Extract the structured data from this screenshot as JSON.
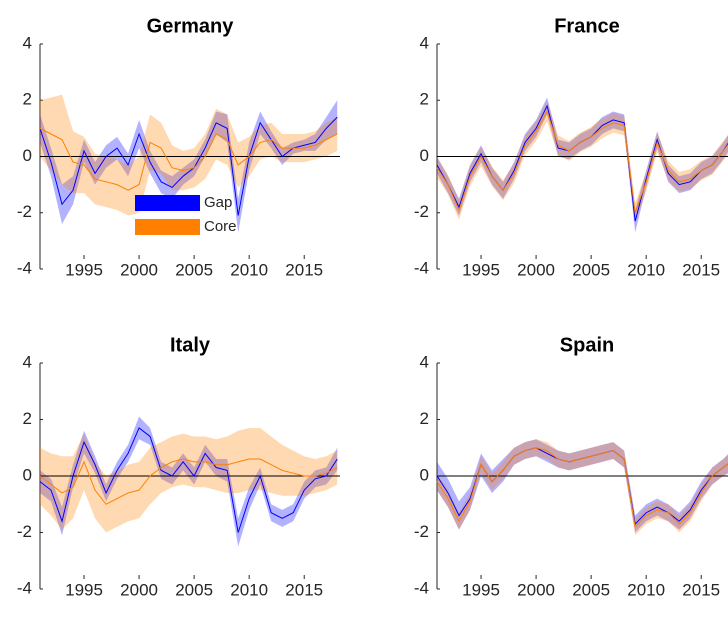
{
  "chart_data": [
    {
      "type": "line",
      "title": "Germany",
      "x": [
        1991,
        1992,
        1993,
        1994,
        1995,
        1996,
        1997,
        1998,
        1999,
        2000,
        2001,
        2002,
        2003,
        2004,
        2005,
        2006,
        2007,
        2008,
        2009,
        2010,
        2011,
        2012,
        2013,
        2014,
        2015,
        2016,
        2017,
        2018
      ],
      "xlim": [
        1991,
        2018.25
      ],
      "xticks": [
        1995,
        2000,
        2005,
        2010,
        2015
      ],
      "ylim": [
        -4,
        4
      ],
      "yticks": [
        -4,
        -2,
        0,
        2,
        4
      ],
      "legend": "lower-center",
      "series": [
        {
          "name": "Gap",
          "color": "#0000ff",
          "values": [
            1.0,
            -0.2,
            -1.7,
            -1.2,
            0.2,
            -0.6,
            0.0,
            0.3,
            -0.3,
            0.8,
            -0.2,
            -0.9,
            -1.1,
            -0.7,
            -0.4,
            0.3,
            1.2,
            1.0,
            -2.1,
            0.0,
            1.2,
            0.6,
            0.0,
            0.3,
            0.4,
            0.5,
            1.0,
            1.4
          ],
          "errors": [
            0.5,
            0.5,
            0.7,
            0.5,
            0.4,
            0.4,
            0.4,
            0.4,
            0.4,
            0.5,
            0.4,
            0.4,
            0.4,
            0.3,
            0.3,
            0.3,
            0.4,
            0.5,
            0.6,
            0.5,
            0.4,
            0.3,
            0.3,
            0.2,
            0.2,
            0.3,
            0.4,
            0.6
          ]
        },
        {
          "name": "Core",
          "color": "#ff8000",
          "values": [
            1.0,
            0.8,
            0.6,
            -0.2,
            -0.3,
            -0.8,
            -0.9,
            -1.0,
            -1.2,
            -1.0,
            0.5,
            0.3,
            -0.4,
            -0.5,
            -0.4,
            0.0,
            0.8,
            0.6,
            -0.3,
            0.0,
            0.5,
            0.6,
            0.3,
            0.3,
            0.3,
            0.4,
            0.6,
            0.8
          ],
          "errors": [
            1.0,
            1.3,
            1.6,
            1.1,
            1.0,
            0.9,
            0.9,
            0.9,
            0.9,
            1.0,
            1.0,
            0.9,
            0.8,
            0.7,
            0.7,
            0.8,
            0.9,
            0.9,
            0.8,
            0.7,
            0.6,
            0.6,
            0.5,
            0.5,
            0.5,
            0.5,
            0.6,
            0.6
          ]
        }
      ]
    },
    {
      "type": "line",
      "title": "France",
      "x": [
        1991,
        1992,
        1993,
        1994,
        1995,
        1996,
        1997,
        1998,
        1999,
        2000,
        2001,
        2002,
        2003,
        2004,
        2005,
        2006,
        2007,
        2008,
        2009,
        2010,
        2011,
        2012,
        2013,
        2014,
        2015,
        2016,
        2017,
        2018
      ],
      "xlim": [
        1991,
        2018.25
      ],
      "xticks": [
        1995,
        2000,
        2005,
        2010,
        2015
      ],
      "ylim": [
        -4,
        4
      ],
      "yticks": [
        -4,
        -2,
        0,
        2,
        4
      ],
      "series": [
        {
          "color": "#0000ff",
          "values": [
            -0.3,
            -1.0,
            -1.8,
            -0.6,
            0.1,
            -0.7,
            -1.2,
            -0.5,
            0.5,
            1.0,
            1.8,
            0.3,
            0.2,
            0.5,
            0.7,
            1.1,
            1.3,
            1.2,
            -2.3,
            -0.8,
            0.6,
            -0.6,
            -1.0,
            -0.9,
            -0.5,
            -0.3,
            0.2,
            0.8
          ],
          "errors": [
            0.3,
            0.3,
            0.3,
            0.3,
            0.3,
            0.3,
            0.3,
            0.3,
            0.3,
            0.3,
            0.3,
            0.3,
            0.3,
            0.3,
            0.3,
            0.3,
            0.3,
            0.3,
            0.4,
            0.3,
            0.3,
            0.3,
            0.3,
            0.3,
            0.3,
            0.3,
            0.3,
            0.3
          ]
        },
        {
          "color": "#ff8000",
          "values": [
            -0.4,
            -1.0,
            -1.9,
            -0.7,
            0.0,
            -0.7,
            -1.2,
            -0.6,
            0.4,
            0.9,
            1.6,
            0.4,
            0.2,
            0.5,
            0.7,
            1.0,
            1.2,
            1.1,
            -2.0,
            -0.9,
            0.5,
            -0.5,
            -0.9,
            -0.8,
            -0.5,
            -0.3,
            0.2,
            0.7
          ],
          "errors": [
            0.35,
            0.35,
            0.35,
            0.35,
            0.35,
            0.35,
            0.35,
            0.35,
            0.35,
            0.35,
            0.35,
            0.35,
            0.35,
            0.35,
            0.35,
            0.35,
            0.35,
            0.35,
            0.35,
            0.35,
            0.35,
            0.35,
            0.35,
            0.35,
            0.35,
            0.35,
            0.35,
            0.35
          ]
        }
      ]
    },
    {
      "type": "line",
      "title": "Italy",
      "x": [
        1991,
        1992,
        1993,
        1994,
        1995,
        1996,
        1997,
        1998,
        1999,
        2000,
        2001,
        2002,
        2003,
        2004,
        2005,
        2006,
        2007,
        2008,
        2009,
        2010,
        2011,
        2012,
        2013,
        2014,
        2015,
        2016,
        2017,
        2018
      ],
      "xlim": [
        1991,
        2018.25
      ],
      "xticks": [
        1995,
        2000,
        2005,
        2010,
        2015
      ],
      "ylim": [
        -4,
        4
      ],
      "yticks": [
        -4,
        -2,
        0,
        2,
        4
      ],
      "series": [
        {
          "color": "#0000ff",
          "values": [
            -0.2,
            -0.5,
            -1.6,
            0.0,
            1.2,
            0.4,
            -0.6,
            0.2,
            0.8,
            1.7,
            1.4,
            0.2,
            0.0,
            0.5,
            0.0,
            0.8,
            0.3,
            0.2,
            -2.0,
            -0.8,
            0.0,
            -1.3,
            -1.5,
            -1.3,
            -0.5,
            -0.1,
            0.0,
            0.6
          ],
          "errors": [
            0.4,
            0.4,
            0.5,
            0.4,
            0.4,
            0.3,
            0.3,
            0.3,
            0.3,
            0.4,
            0.3,
            0.3,
            0.3,
            0.3,
            0.3,
            0.3,
            0.3,
            0.4,
            0.5,
            0.4,
            0.3,
            0.3,
            0.3,
            0.3,
            0.3,
            0.3,
            0.3,
            0.4
          ]
        },
        {
          "color": "#ff8000",
          "values": [
            0.0,
            -0.3,
            -0.6,
            -0.4,
            0.5,
            -0.5,
            -1.0,
            -0.8,
            -0.6,
            -0.5,
            0.0,
            0.3,
            0.5,
            0.6,
            0.5,
            0.5,
            0.4,
            0.4,
            0.5,
            0.6,
            0.6,
            0.4,
            0.2,
            0.1,
            0.0,
            0.0,
            0.1,
            0.3
          ],
          "errors": [
            1.0,
            1.1,
            1.3,
            1.1,
            1.0,
            1.0,
            1.0,
            1.0,
            1.0,
            1.0,
            1.0,
            0.9,
            0.9,
            0.9,
            0.9,
            0.9,
            0.9,
            1.0,
            1.1,
            1.1,
            1.1,
            1.0,
            0.9,
            0.8,
            0.7,
            0.6,
            0.6,
            0.6
          ]
        }
      ]
    },
    {
      "type": "line",
      "title": "Spain",
      "x": [
        1991,
        1992,
        1993,
        1994,
        1995,
        1996,
        1997,
        1998,
        1999,
        2000,
        2001,
        2002,
        2003,
        2004,
        2005,
        2006,
        2007,
        2008,
        2009,
        2010,
        2011,
        2012,
        2013,
        2014,
        2015,
        2016,
        2017,
        2018
      ],
      "xlim": [
        1991,
        2018.25
      ],
      "xticks": [
        1995,
        2000,
        2005,
        2010,
        2015
      ],
      "ylim": [
        -4,
        4
      ],
      "yticks": [
        -4,
        -2,
        0,
        2,
        4
      ],
      "series": [
        {
          "color": "#0000ff",
          "values": [
            0.0,
            -0.6,
            -1.4,
            -0.8,
            0.4,
            -0.2,
            0.2,
            0.7,
            0.9,
            1.0,
            0.8,
            0.6,
            0.5,
            0.6,
            0.7,
            0.8,
            0.9,
            0.6,
            -1.7,
            -1.3,
            -1.1,
            -1.3,
            -1.6,
            -1.2,
            -0.5,
            0.0,
            0.3,
            0.6
          ],
          "errors": [
            0.5,
            0.5,
            0.5,
            0.4,
            0.4,
            0.4,
            0.4,
            0.3,
            0.3,
            0.3,
            0.3,
            0.3,
            0.3,
            0.3,
            0.3,
            0.3,
            0.3,
            0.3,
            0.3,
            0.3,
            0.3,
            0.3,
            0.3,
            0.3,
            0.3,
            0.3,
            0.3,
            0.4
          ]
        },
        {
          "color": "#ff8000",
          "values": [
            -0.2,
            -0.8,
            -1.6,
            -0.9,
            0.4,
            -0.2,
            0.2,
            0.7,
            0.9,
            1.0,
            0.9,
            0.6,
            0.5,
            0.6,
            0.7,
            0.8,
            0.9,
            0.6,
            -1.8,
            -1.4,
            -1.2,
            -1.3,
            -1.7,
            -1.3,
            -0.6,
            0.0,
            0.3,
            0.6
          ],
          "errors": [
            0.3,
            0.3,
            0.3,
            0.3,
            0.3,
            0.3,
            0.3,
            0.3,
            0.3,
            0.3,
            0.3,
            0.3,
            0.3,
            0.3,
            0.3,
            0.3,
            0.3,
            0.3,
            0.3,
            0.3,
            0.3,
            0.3,
            0.3,
            0.3,
            0.3,
            0.3,
            0.3,
            0.3
          ]
        }
      ]
    }
  ]
}
